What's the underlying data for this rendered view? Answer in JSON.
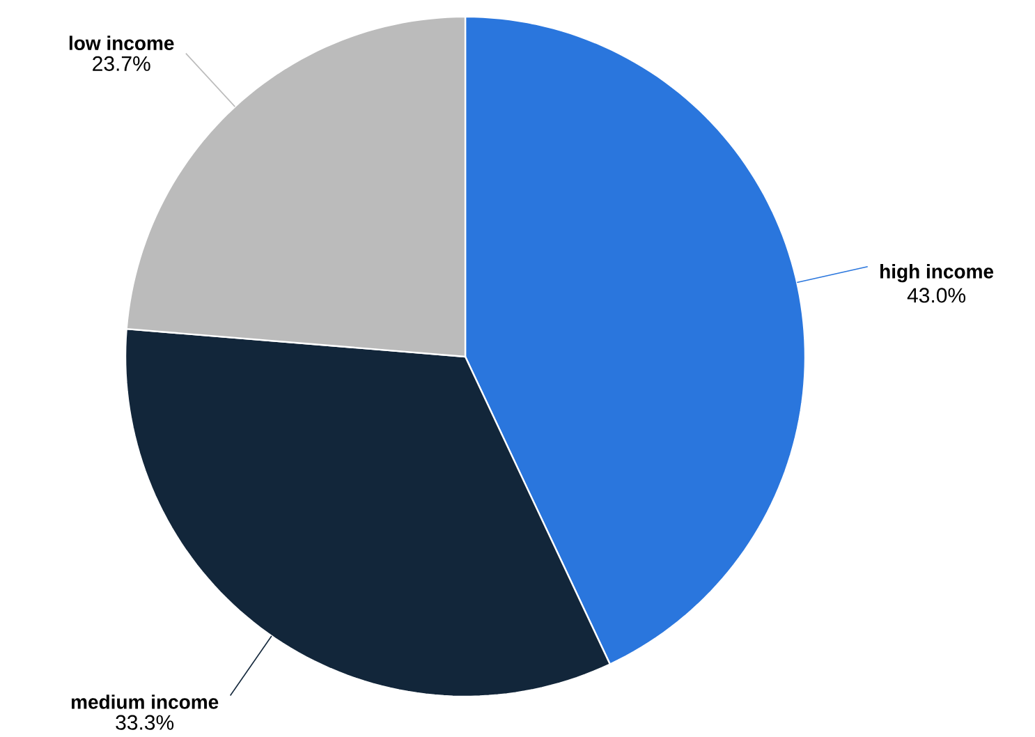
{
  "chart_data": {
    "type": "pie",
    "categories": [
      "high income",
      "medium income",
      "low income"
    ],
    "values": [
      43.0,
      33.3,
      23.7
    ],
    "value_labels": [
      "43.0%",
      "33.3%",
      "23.7%"
    ],
    "colors": [
      "#2a76dd",
      "#12263a",
      "#bbbbbb"
    ]
  }
}
